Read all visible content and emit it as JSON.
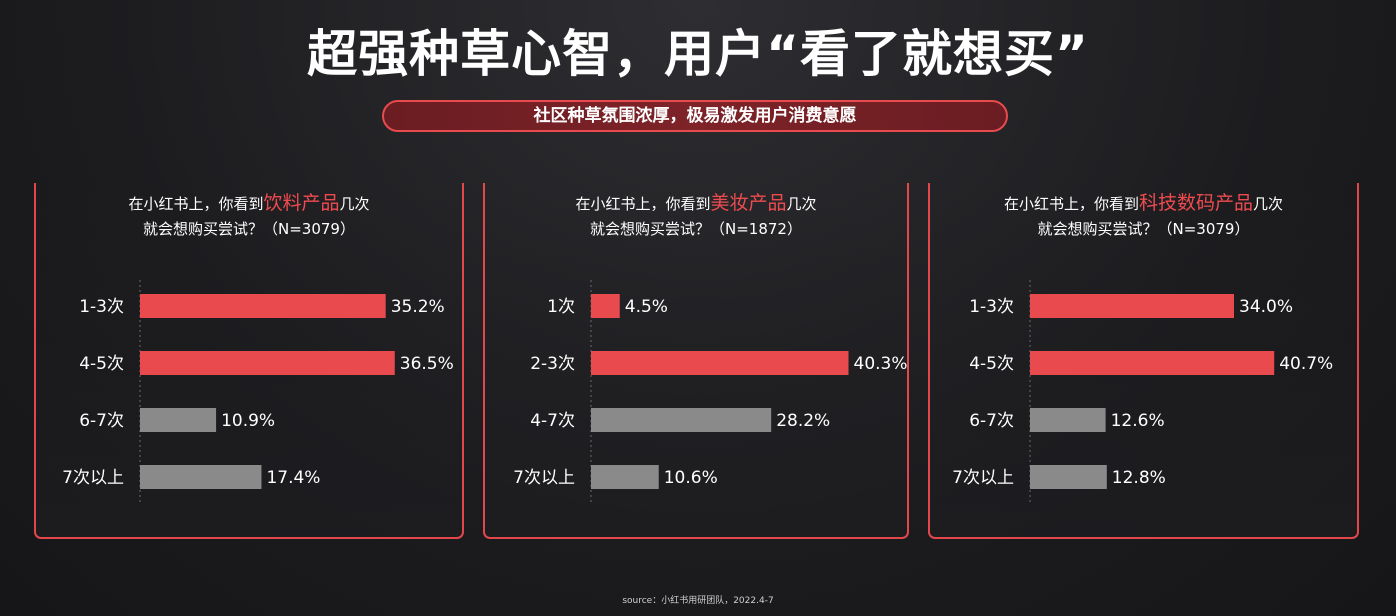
{
  "title": "超强种草心智，用户“看了就想买”",
  "subtitle": "社区种草氛围浓厚，极易激发用户消费意愿",
  "colors": {
    "accent": "#e84a4e",
    "neutral": "#8a8a8a"
  },
  "chart_data": [
    {
      "type": "bar",
      "orientation": "horizontal",
      "question": {
        "prefix": "在小红书上，你看到",
        "highlight": "饮料产品",
        "suffix": "几次",
        "line2": "就会想购买尝试？（N=3079）"
      },
      "categories": [
        "1-3次",
        "4-5次",
        "6-7次",
        "7次以上"
      ],
      "values": [
        35.2,
        36.5,
        10.9,
        17.4
      ],
      "labels": [
        "35.2%",
        "36.5%",
        "10.9%",
        "17.4%"
      ],
      "highlighted": [
        true,
        true,
        false,
        false
      ],
      "xlim": [
        0,
        40
      ]
    },
    {
      "type": "bar",
      "orientation": "horizontal",
      "question": {
        "prefix": "在小红书上，你看到",
        "highlight": "美妆产品",
        "suffix": "几次",
        "line2": "就会想购买尝试？（N=1872）"
      },
      "categories": [
        "1次",
        "2-3次",
        "4-7次",
        "7次以上"
      ],
      "values": [
        4.5,
        40.3,
        28.2,
        10.6
      ],
      "labels": [
        "4.5%",
        "40.3%",
        "28.2%",
        "10.6%"
      ],
      "highlighted": [
        true,
        true,
        false,
        false
      ],
      "xlim": [
        0,
        40
      ]
    },
    {
      "type": "bar",
      "orientation": "horizontal",
      "question": {
        "prefix": "在小红书上，你看到",
        "highlight": "科技数码产品",
        "suffix": "几次",
        "line2": "就会想购买尝试？（N=3079）"
      },
      "categories": [
        "1-3次",
        "4-5次",
        "6-7次",
        "7次以上"
      ],
      "values": [
        34.0,
        40.7,
        12.6,
        12.8
      ],
      "labels": [
        "34.0%",
        "40.7%",
        "12.6%",
        "12.8%"
      ],
      "highlighted": [
        true,
        true,
        false,
        false
      ],
      "xlim": [
        0,
        40
      ]
    }
  ],
  "source": "source：小红书用研团队，2022.4-7"
}
